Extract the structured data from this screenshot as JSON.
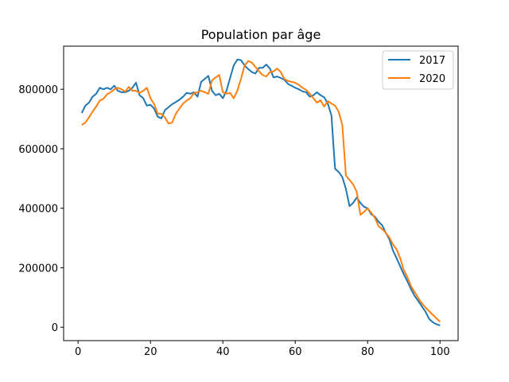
{
  "chart_data": {
    "type": "line",
    "title": "Population par âge",
    "xlabel": "",
    "ylabel": "",
    "xlim": [
      -4,
      105
    ],
    "ylim": [
      -45000,
      945000
    ],
    "x_ticks": [
      0,
      20,
      40,
      60,
      80,
      100
    ],
    "y_ticks": [
      0,
      200000,
      400000,
      600000,
      800000
    ],
    "x_tick_labels": [
      "0",
      "20",
      "40",
      "60",
      "80",
      "100"
    ],
    "y_tick_labels": [
      "0",
      "200000",
      "400000",
      "600000",
      "800000"
    ],
    "grid": false,
    "legend": "top-right",
    "x": [
      1,
      2,
      3,
      4,
      5,
      6,
      7,
      8,
      9,
      10,
      11,
      12,
      13,
      14,
      15,
      16,
      17,
      18,
      19,
      20,
      21,
      22,
      23,
      24,
      25,
      26,
      27,
      28,
      29,
      30,
      31,
      32,
      33,
      34,
      35,
      36,
      37,
      38,
      39,
      40,
      41,
      42,
      43,
      44,
      45,
      46,
      47,
      48,
      49,
      50,
      51,
      52,
      53,
      54,
      55,
      56,
      57,
      58,
      59,
      60,
      61,
      62,
      63,
      64,
      65,
      66,
      67,
      68,
      69,
      70,
      71,
      72,
      73,
      74,
      75,
      76,
      77,
      78,
      79,
      80,
      81,
      82,
      83,
      84,
      85,
      86,
      87,
      88,
      89,
      90,
      91,
      92,
      93,
      94,
      95,
      96,
      97,
      98,
      99,
      100
    ],
    "series": [
      {
        "name": "2017",
        "color": "#1f77b4",
        "values": [
          720000,
          745000,
          755000,
          775000,
          785000,
          805000,
          800000,
          805000,
          800000,
          812000,
          795000,
          790000,
          790000,
          795000,
          805000,
          822000,
          780000,
          770000,
          745000,
          748000,
          735000,
          708000,
          702000,
          730000,
          740000,
          750000,
          757000,
          765000,
          775000,
          788000,
          785000,
          790000,
          775000,
          825000,
          835000,
          845000,
          795000,
          780000,
          785000,
          770000,
          795000,
          838000,
          880000,
          900000,
          898000,
          880000,
          868000,
          858000,
          853000,
          872000,
          872000,
          883000,
          870000,
          840000,
          843000,
          838000,
          832000,
          818000,
          812000,
          805000,
          800000,
          793000,
          790000,
          775000,
          780000,
          790000,
          780000,
          773000,
          752000,
          712000,
          533000,
          522000,
          505000,
          465000,
          407000,
          418000,
          436000,
          418000,
          405000,
          400000,
          380000,
          372000,
          355000,
          343000,
          318000,
          296000,
          258000,
          232000,
          205000,
          178000,
          154000,
          128000,
          105000,
          88000,
          70000,
          52000,
          28000,
          17000,
          10000,
          6000
        ]
      },
      {
        "name": "2020",
        "color": "#ff7f0e",
        "values": [
          680000,
          688000,
          705000,
          725000,
          742000,
          762000,
          768000,
          783000,
          790000,
          800000,
          805000,
          800000,
          792000,
          808000,
          795000,
          795000,
          788000,
          795000,
          805000,
          770000,
          750000,
          718000,
          718000,
          705000,
          685000,
          688000,
          718000,
          735000,
          752000,
          762000,
          770000,
          787000,
          790000,
          795000,
          790000,
          785000,
          830000,
          840000,
          848000,
          790000,
          785000,
          788000,
          770000,
          795000,
          835000,
          880000,
          895000,
          890000,
          875000,
          860000,
          848000,
          843000,
          858000,
          860000,
          870000,
          858000,
          835000,
          828000,
          825000,
          822000,
          815000,
          805000,
          798000,
          785000,
          770000,
          755000,
          763000,
          742000,
          760000,
          752000,
          745000,
          725000,
          680000,
          510000,
          495000,
          480000,
          455000,
          378000,
          388000,
          400000,
          385000,
          368000,
          340000,
          330000,
          318000,
          302000,
          278000,
          262000,
          232000,
          192000,
          168000,
          138000,
          118000,
          98000,
          80000,
          66000,
          54000,
          42000,
          30000,
          18000
        ]
      }
    ]
  }
}
